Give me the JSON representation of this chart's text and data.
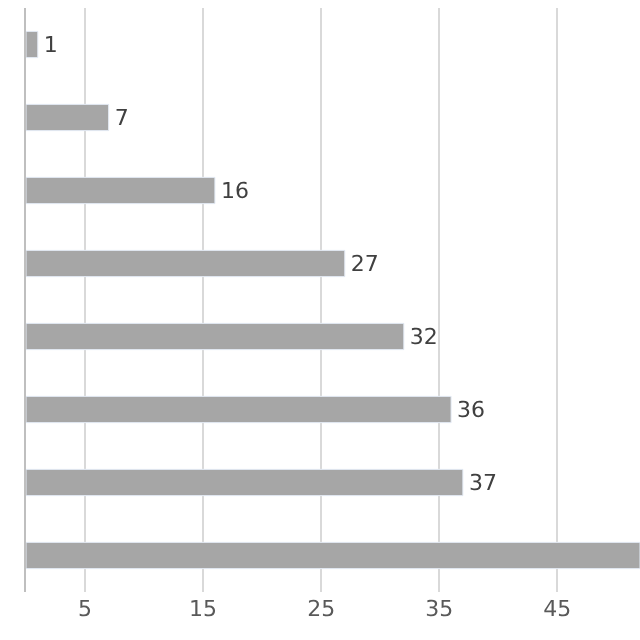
{
  "chart_data": {
    "type": "bar",
    "orientation": "horizontal",
    "categories": [
      null,
      null,
      null,
      null,
      null,
      null,
      null,
      null
    ],
    "values": [
      1,
      7,
      16,
      27,
      32,
      36,
      37,
      52
    ],
    "value_labels": [
      "1",
      "7",
      "16",
      "27",
      "32",
      "36",
      "37",
      null
    ],
    "color": "#a6a6a6",
    "xlim": [
      0,
      52
    ],
    "xticks": [
      5,
      15,
      25,
      35,
      45
    ],
    "grid": "x",
    "legend": false,
    "tick_labels": "x"
  }
}
